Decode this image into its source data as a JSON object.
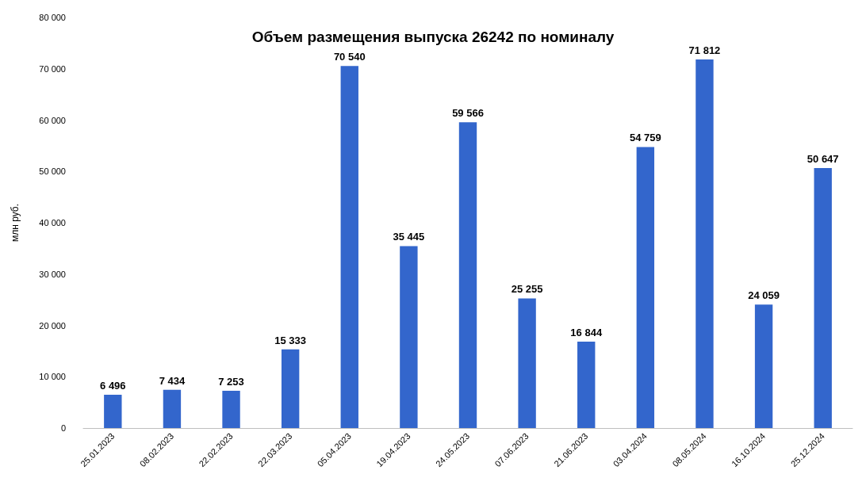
{
  "chart_data": {
    "type": "bar",
    "title": "Объем размещения выпуска 26242 по номиналу",
    "ylabel": "млн руб.",
    "categories": [
      "25.01.2023",
      "08.02.2023",
      "22.02.2023",
      "22.03.2023",
      "05.04.2023",
      "19.04.2023",
      "24.05.2023",
      "07.06.2023",
      "21.06.2023",
      "03.04.2024",
      "08.05.2024",
      "16.10.2024",
      "25.12.2024"
    ],
    "values": [
      6496,
      7434,
      7253,
      15333,
      70540,
      35445,
      59566,
      25255,
      16844,
      54759,
      71812,
      24059,
      50647
    ],
    "value_labels": [
      "6 496",
      "7 434",
      "7 253",
      "15 333",
      "70 540",
      "35 445",
      "59 566",
      "25 255",
      "16 844",
      "54 759",
      "71 812",
      "24 059",
      "50 647"
    ],
    "color": "#3366cc",
    "ylim": [
      0,
      80000
    ],
    "yticks": [
      0,
      {
        "value": 10000,
        "label": "10 000"
      },
      {
        "value": 20000,
        "label": "20 000"
      },
      {
        "value": 30000,
        "label": "30 000"
      },
      {
        "value": 40000,
        "label": "40 000"
      },
      {
        "value": 50000,
        "label": "50 000"
      },
      {
        "value": 60000,
        "label": "60 000"
      },
      {
        "value": 70000,
        "label": "70 000"
      },
      {
        "value": 80000,
        "label": "80 000"
      }
    ],
    "grid": false
  }
}
